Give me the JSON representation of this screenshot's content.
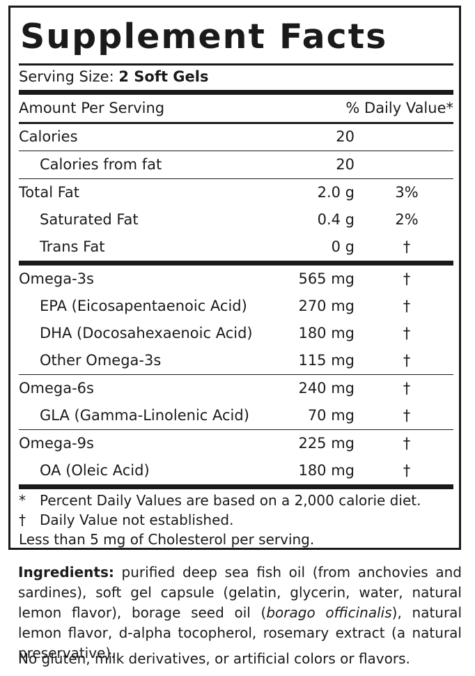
{
  "title": "Supplement Facts",
  "serving": {
    "label": "Serving Size:",
    "value": "2 Soft Gels"
  },
  "header": {
    "amount_label": "Amount Per Serving",
    "dv_label": "% Daily Value*"
  },
  "rows": [
    {
      "name": "Calories",
      "amount": "20",
      "dv": ""
    },
    {
      "name": "Calories from fat",
      "amount": "20",
      "dv": ""
    },
    {
      "name": "Total Fat",
      "amount": "2.0 g",
      "dv": "3%"
    },
    {
      "name": "Saturated Fat",
      "amount": "0.4 g",
      "dv": "2%"
    },
    {
      "name": "Trans Fat",
      "amount": "0 g",
      "dv": "†"
    },
    {
      "name": "Omega-3s",
      "amount": "565 mg",
      "dv": "†"
    },
    {
      "name": "EPA (Eicosapentaenoic Acid)",
      "amount": "270 mg",
      "dv": "†"
    },
    {
      "name": "DHA (Docosahexaenoic Acid)",
      "amount": "180 mg",
      "dv": "†"
    },
    {
      "name": "Other Omega-3s",
      "amount": "115 mg",
      "dv": "†"
    },
    {
      "name": "Omega-6s",
      "amount": "240 mg",
      "dv": "†"
    },
    {
      "name": "GLA (Gamma-Linolenic Acid)",
      "amount": "70 mg",
      "dv": "†"
    },
    {
      "name": "Omega-9s",
      "amount": "225 mg",
      "dv": "†"
    },
    {
      "name": "OA (Oleic Acid)",
      "amount": "180 mg",
      "dv": "†"
    }
  ],
  "footnotes": {
    "dv_symbol": "*",
    "dv_text": "Percent Daily Values are based on a 2,000 calorie diet.",
    "dagger_symbol": "†",
    "dagger_text": "Daily Value not established.",
    "cholesterol": "Less than 5 mg of Cholesterol per serving."
  },
  "ingredients": {
    "label": "Ingredients:",
    "text_1": " purified deep sea fish oil (from anchovies and sardines), soft gel capsule (gelatin, glycerin, water, natural lemon flavor), borage seed oil (",
    "text_italic": "borago officinalis",
    "text_2": "), natural lemon flavor, d-alpha tocopherol, rosemary extract (a natural preservative)."
  },
  "free_from": "No gluten, milk derivatives, or artificial colors or flavors."
}
